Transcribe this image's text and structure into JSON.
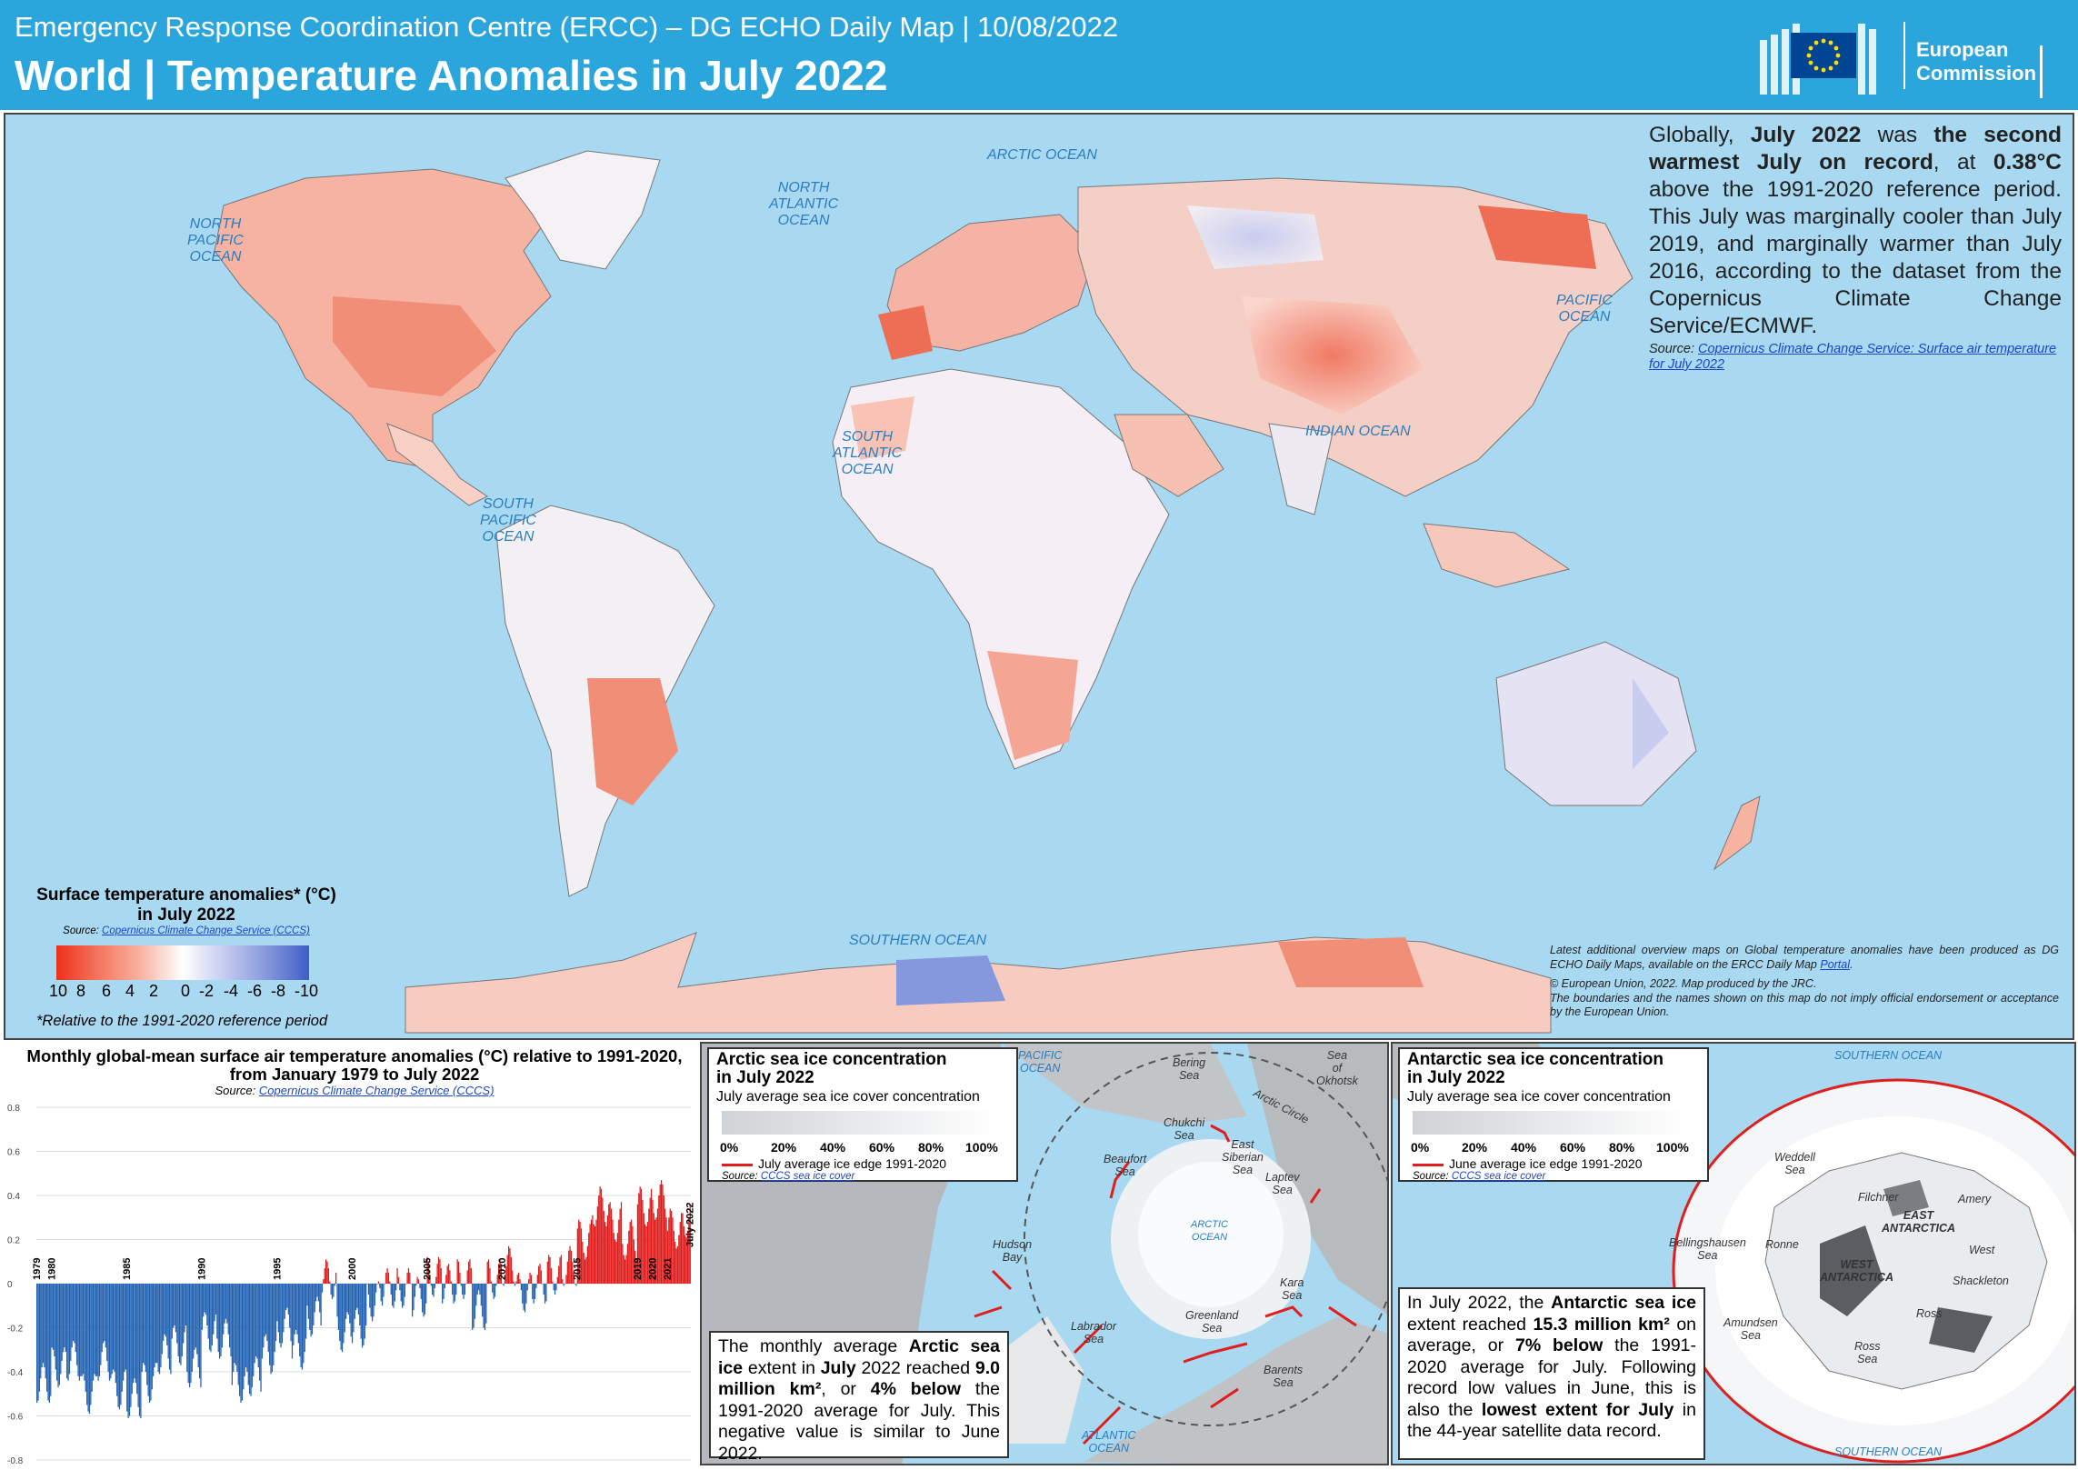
{
  "header": {
    "subtitle": "Emergency Response Coordination Centre (ERCC) – DG ECHO Daily Map | 10/08/2022",
    "title": "World | Temperature Anomalies in July 2022",
    "logo_text_1": "European",
    "logo_text_2": "Commission"
  },
  "ocean_labels": {
    "arctic": "ARCTIC OCEAN",
    "north_atlantic": "NORTH\nATLANTIC\nOCEAN",
    "north_pacific": "NORTH\nPACIFIC\nOCEAN",
    "pacific": "PACIFIC\nOCEAN",
    "south_atlantic": "SOUTH\nATLANTIC\nOCEAN",
    "south_pacific": "SOUTH\nPACIFIC\nOCEAN",
    "indian": "INDIAN OCEAN",
    "southern": "SOUTHERN OCEAN"
  },
  "info": {
    "p1": "Globally,",
    "p2": "July 2022",
    "p3": "was",
    "p4": "the second warmest July on record",
    "p5": ", at",
    "p6": "0.38°C",
    "p7": "above the 1991-2020 reference period. This July was marginally cooler than July 2019, and marginally warmer than July 2016, according to the dataset from the Copernicus Climate Change Service/ECMWF.",
    "source_label": "Source:",
    "source_link": "Copernicus Climate Change Service: Surface air temperature for July 2022"
  },
  "legend": {
    "title": "Surface temperature anomalies* (°C) in July 2022",
    "source_label": "Source:",
    "source_link": "Copernicus Climate Change Service (CCCS)",
    "ticks": [
      "10",
      "8",
      "6",
      "4",
      "2",
      "0",
      "-2",
      "-4",
      "-6",
      "-8",
      "-10"
    ],
    "note": "*Relative to the 1991-2020 reference period",
    "colors": [
      "#ee2f1a",
      "#ffffff",
      "#3f5ec6"
    ]
  },
  "latest_note": {
    "line1": "Latest additional overview maps on Global temperature anomalies have been produced as DG ECHO Daily Maps, available on the ERCC Daily Map",
    "link": "Portal",
    "line2": "© European Union, 2022. Map produced by the JRC.",
    "line3": "The boundaries and the names shown on this map do not imply official endorsement or acceptance by the European Union."
  },
  "chart_data": {
    "type": "bar",
    "title": "Monthly global-mean surface air temperature anomalies (°C) relative to 1991-2020, from January 1979 to July 2022",
    "source_label": "Source:",
    "source_link": "Copernicus Climate Change Service (CCCS)",
    "ylim": [
      -0.8,
      0.8
    ],
    "yticks": [
      "0.8",
      "0.6",
      "0.4",
      "0.2",
      "0",
      "-0.2",
      "-0.4",
      "-0.6",
      "-0.8"
    ],
    "year_labels": [
      "1979",
      "1980",
      "1985",
      "1990",
      "1995",
      "2000",
      "2005",
      "2010",
      "2015",
      "2019",
      "2020",
      "2021",
      "July 2022"
    ],
    "colors": {
      "positive": "#e01818",
      "negative": "#1f5fb0"
    },
    "annual_means": {
      "1979": -0.45,
      "1980": -0.38,
      "1981": -0.35,
      "1982": -0.5,
      "1983": -0.35,
      "1984": -0.48,
      "1985": -0.52,
      "1986": -0.45,
      "1987": -0.32,
      "1988": -0.28,
      "1989": -0.38,
      "1990": -0.22,
      "1991": -0.25,
      "1992": -0.45,
      "1993": -0.42,
      "1994": -0.32,
      "1995": -0.2,
      "1996": -0.3,
      "1997": -0.15,
      "1998": 0.02,
      "1999": -0.22,
      "2000": -0.2,
      "2001": -0.08,
      "2002": -0.02,
      "2003": -0.02,
      "2004": -0.06,
      "2005": 0.03,
      "2006": 0.0,
      "2007": 0.02,
      "2008": -0.12,
      "2009": 0.02,
      "2010": 0.08,
      "2011": -0.04,
      "2012": 0.0,
      "2013": 0.04,
      "2014": 0.08,
      "2015": 0.2,
      "2016": 0.35,
      "2017": 0.28,
      "2018": 0.2,
      "2019": 0.35,
      "2020": 0.38,
      "2021": 0.25,
      "2022": 0.3
    },
    "last_value_label": "July 2022"
  },
  "arctic": {
    "title_1": "Arctic sea ice concentration",
    "title_2": "in July 2022",
    "subtitle": "July average sea ice cover concentration",
    "pcts": [
      "0%",
      "20%",
      "40%",
      "60%",
      "80%",
      "100%"
    ],
    "edge_label": "July average ice edge 1991-2020",
    "source_label": "Source:",
    "source_link": "CCCS sea ice cover",
    "text_a": "The monthly average",
    "text_b": "Arctic sea ice",
    "text_c": "extent in",
    "text_d": "July",
    "text_e": "2022 reached",
    "text_f": "9.0 million km²",
    "text_g": ", or",
    "text_h": "4% below",
    "text_i": "the 1991-2020 average for July. This negative value is similar to June 2022.",
    "labels": {
      "pacific": "PACIFIC\nOCEAN",
      "bering": "Bering\nSea",
      "okhotsk": "Sea\nof\nOkhotsk",
      "chukchi": "Chukchi\nSea",
      "east_siberian": "East\nSiberian\nSea",
      "beaufort": "Beaufort\nSea",
      "laptev": "Laptev\nSea",
      "arctic_ocean": "ARCTIC\nOCEAN",
      "hudson": "Hudson\nBay",
      "kara": "Kara\nSea",
      "greenland": "Greenland\nSea",
      "labrador": "Labrador\nSea",
      "barents": "Barents\nSea",
      "atlantic": "ATLANTIC\nOCEAN",
      "arctic_circle": "Arctic Circle"
    }
  },
  "antarctic": {
    "title_1": "Antarctic sea ice concentration",
    "title_2": "in July 2022",
    "subtitle": "July average sea ice cover concentration",
    "pcts": [
      "0%",
      "20%",
      "40%",
      "60%",
      "80%",
      "100%"
    ],
    "edge_label": "June average ice edge 1991-2020",
    "source_label": "Source:",
    "source_link": "CCCS sea ice cover",
    "text_a": "In July 2022, the",
    "text_b": "Antarctic sea ice",
    "text_c": "extent reached",
    "text_d": "15.3 million km²",
    "text_e": "on average, or",
    "text_f": "7% below",
    "text_g": "the 1991-2020 average for July. Following record low values in June, this is also the",
    "text_h": "lowest extent for July",
    "text_i": "in the 44-year satellite data record.",
    "labels": {
      "southern_top": "SOUTHERN OCEAN",
      "southern_bottom": "SOUTHERN OCEAN",
      "weddell": "Weddell\nSea",
      "filchner": "Filchner",
      "amery": "Amery",
      "east_ant": "EAST\nANTARCTICA",
      "bellingshausen": "Bellingshausen\nSea",
      "ronne": "Ronne",
      "west": "West",
      "west_ant": "WEST\nANTARCTICA",
      "shackleton": "Shackleton",
      "ross_shelf": "Ross",
      "amundsen": "Amundsen\nSea",
      "ross_sea": "Ross\nSea"
    }
  }
}
